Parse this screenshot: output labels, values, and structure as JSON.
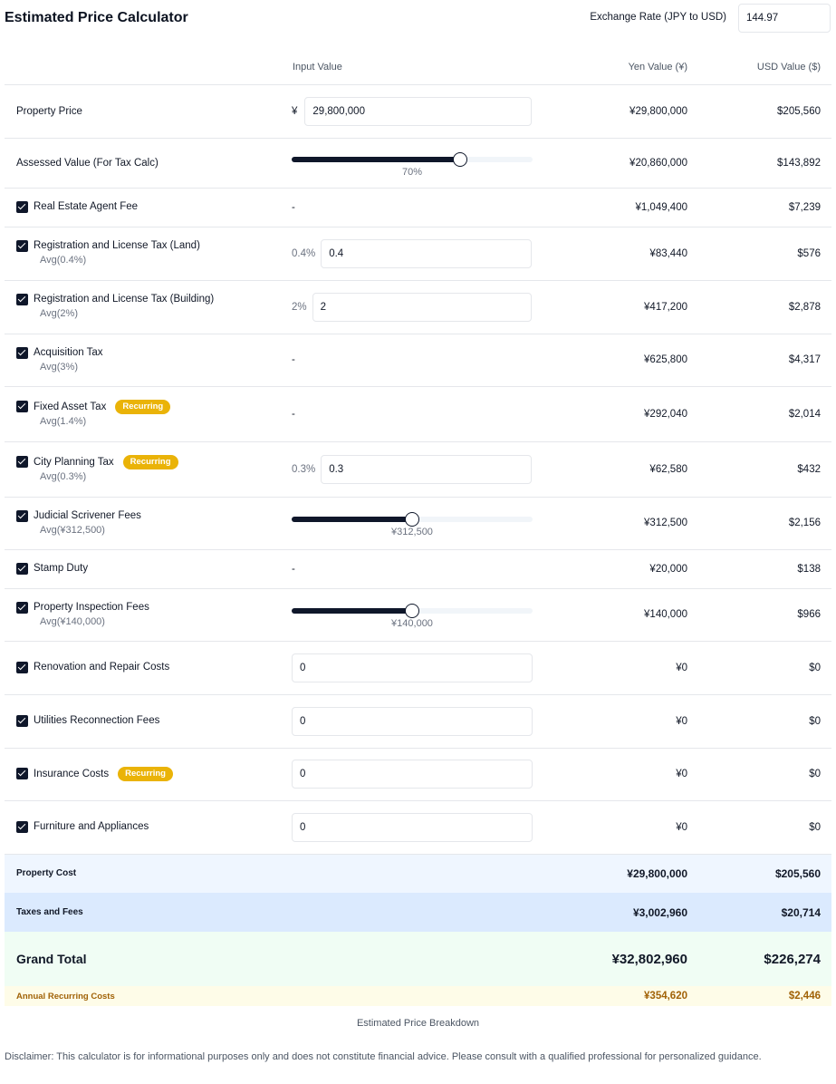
{
  "header": {
    "title": "Estimated Price Calculator",
    "exchange_label": "Exchange Rate (JPY to USD)",
    "exchange_value": "144.97"
  },
  "columns": {
    "input": "Input Value",
    "yen": "Yen Value (¥)",
    "usd": "USD Value ($)"
  },
  "rows": {
    "property_price": {
      "label": "Property Price",
      "prefix": "¥",
      "value": "29,800,000",
      "yen": "¥29,800,000",
      "usd": "$205,560"
    },
    "assessed": {
      "label": "Assessed Value (For Tax Calc)",
      "slider_percent": 70,
      "slider_label": "70%",
      "yen": "¥20,860,000",
      "usd": "$143,892"
    },
    "agent_fee": {
      "label": "Real Estate Agent Fee",
      "input": "-",
      "yen": "¥1,049,400",
      "usd": "$7,239",
      "checked": true
    },
    "reg_land": {
      "label": "Registration and License Tax (Land)",
      "sub": "Avg(0.4%)",
      "prefix": "0.4%",
      "value": "0.4",
      "yen": "¥83,440",
      "usd": "$576",
      "checked": true
    },
    "reg_building": {
      "label": "Registration and License Tax (Building)",
      "sub": "Avg(2%)",
      "prefix": "2%",
      "value": "2",
      "yen": "¥417,200",
      "usd": "$2,878",
      "checked": true
    },
    "acquisition": {
      "label": "Acquisition Tax",
      "sub": "Avg(3%)",
      "input": "-",
      "yen": "¥625,800",
      "usd": "$4,317",
      "checked": true
    },
    "fixed_asset": {
      "label": "Fixed Asset Tax",
      "badge": "Recurring",
      "sub": "Avg(1.4%)",
      "input": "-",
      "yen": "¥292,040",
      "usd": "$2,014",
      "checked": true
    },
    "city_planning": {
      "label": "City Planning Tax",
      "badge": "Recurring",
      "sub": "Avg(0.3%)",
      "prefix": "0.3%",
      "value": "0.3",
      "yen": "¥62,580",
      "usd": "$432",
      "checked": true
    },
    "judicial": {
      "label": "Judicial Scrivener Fees",
      "sub": "Avg(¥312,500)",
      "slider_percent": 50,
      "slider_label": "¥312,500",
      "yen": "¥312,500",
      "usd": "$2,156",
      "checked": true
    },
    "stamp": {
      "label": "Stamp Duty",
      "input": "-",
      "yen": "¥20,000",
      "usd": "$138",
      "checked": true
    },
    "inspection": {
      "label": "Property Inspection Fees",
      "sub": "Avg(¥140,000)",
      "slider_percent": 50,
      "slider_label": "¥140,000",
      "yen": "¥140,000",
      "usd": "$966",
      "checked": true
    },
    "renovation": {
      "label": "Renovation and Repair Costs",
      "value": "0",
      "yen": "¥0",
      "usd": "$0",
      "checked": true
    },
    "utilities": {
      "label": "Utilities Reconnection Fees",
      "value": "0",
      "yen": "¥0",
      "usd": "$0",
      "checked": true
    },
    "insurance": {
      "label": "Insurance Costs",
      "badge": "Recurring",
      "value": "0",
      "yen": "¥0",
      "usd": "$0",
      "checked": true
    },
    "furniture": {
      "label": "Furniture and Appliances",
      "value": "0",
      "yen": "¥0",
      "usd": "$0",
      "checked": true
    }
  },
  "summary": {
    "property_cost": {
      "label": "Property Cost",
      "yen": "¥29,800,000",
      "usd": "$205,560"
    },
    "taxes_fees": {
      "label": "Taxes and Fees",
      "yen": "¥3,002,960",
      "usd": "$20,714"
    },
    "grand_total": {
      "label": "Grand Total",
      "yen": "¥32,802,960",
      "usd": "$226,274"
    },
    "annual": {
      "label": "Annual Recurring Costs",
      "yen": "¥354,620",
      "usd": "$2,446"
    }
  },
  "caption": "Estimated Price Breakdown",
  "disclaimer": "Disclaimer: This calculator is for informational purposes only and does not constitute financial advice. Please consult with a qualified professional for personalized guidance."
}
